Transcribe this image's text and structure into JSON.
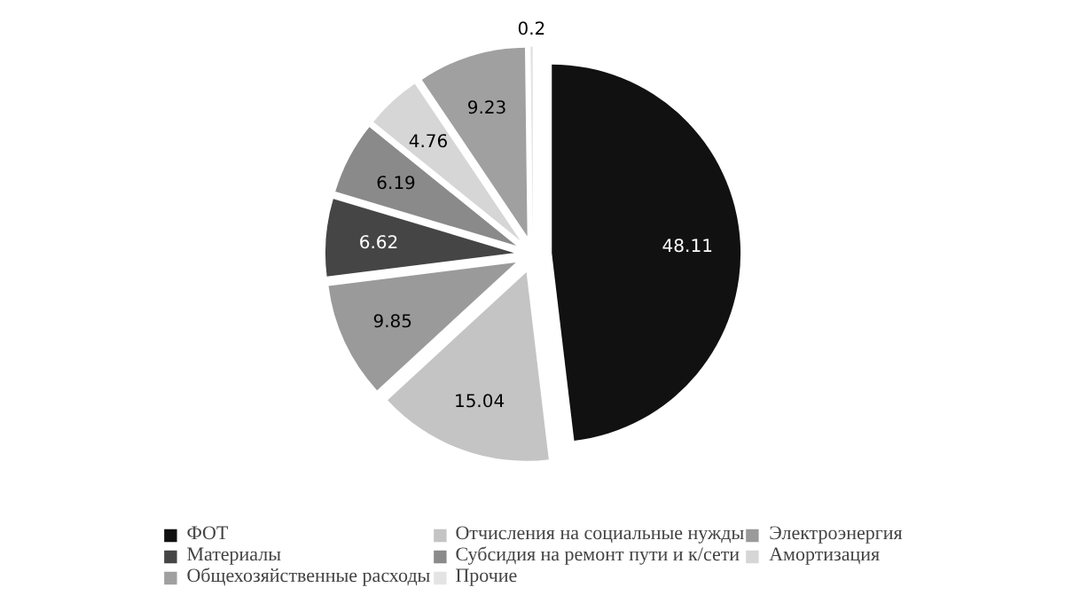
{
  "chart_data": {
    "type": "pie",
    "categories": [
      "ФОТ",
      "Отчисления на социальные нужды",
      "Электроэнергия",
      "Материалы",
      "Субсидия на ремонт пути и к/сети",
      "Амортизация",
      "Общехозяйственные расходы",
      "Прочие"
    ],
    "values": [
      48.11,
      15.04,
      9.85,
      6.62,
      6.19,
      4.76,
      9.23,
      0.2
    ],
    "colors": [
      "#111111",
      "#c4c4c4",
      "#9a9a9a",
      "#454545",
      "#8a8a8a",
      "#d6d6d6",
      "#a0a0a0",
      "#e4e4e4"
    ],
    "data_labels": true,
    "legend": "bottom"
  }
}
